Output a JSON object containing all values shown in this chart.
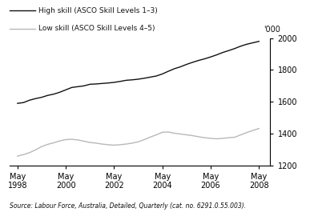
{
  "title": "'000",
  "ylim": [
    1200,
    2000
  ],
  "yticks": [
    1200,
    1400,
    1600,
    1800,
    2000
  ],
  "source_text": "Source: Labour Force, Australia, Detailed, Quarterly (cat. no. 6291.0.55.003).",
  "legend": [
    {
      "label": "High skill (ASCO Skill Levels 1–3)",
      "color": "#111111",
      "lw": 1.0
    },
    {
      "label": "Low skill (ASCO Skill Levels 4–5)",
      "color": "#b8b8b8",
      "lw": 1.0
    }
  ],
  "x_tick_years": [
    1998,
    2000,
    2002,
    2004,
    2006,
    2008
  ],
  "high_skill": {
    "x": [
      1998.33,
      1998.58,
      1998.83,
      1999.08,
      1999.33,
      1999.58,
      1999.83,
      2000.08,
      2000.33,
      2000.58,
      2000.83,
      2001.08,
      2001.33,
      2001.58,
      2001.83,
      2002.08,
      2002.33,
      2002.58,
      2002.83,
      2003.08,
      2003.33,
      2003.58,
      2003.83,
      2004.08,
      2004.33,
      2004.58,
      2004.83,
      2005.08,
      2005.33,
      2005.58,
      2005.83,
      2006.08,
      2006.33,
      2006.58,
      2006.83,
      2007.08,
      2007.33,
      2007.58,
      2007.83,
      2008.33
    ],
    "y": [
      1590,
      1595,
      1610,
      1620,
      1628,
      1640,
      1648,
      1660,
      1675,
      1690,
      1695,
      1700,
      1710,
      1712,
      1715,
      1718,
      1722,
      1728,
      1735,
      1738,
      1742,
      1748,
      1755,
      1762,
      1775,
      1792,
      1808,
      1820,
      1835,
      1848,
      1860,
      1870,
      1882,
      1895,
      1910,
      1922,
      1935,
      1950,
      1962,
      1980
    ]
  },
  "low_skill": {
    "x": [
      1998.33,
      1998.58,
      1998.83,
      1999.08,
      1999.33,
      1999.58,
      1999.83,
      2000.08,
      2000.33,
      2000.58,
      2000.83,
      2001.08,
      2001.33,
      2001.58,
      2001.83,
      2002.08,
      2002.33,
      2002.58,
      2002.83,
      2003.08,
      2003.33,
      2003.58,
      2003.83,
      2004.08,
      2004.33,
      2004.58,
      2004.83,
      2005.08,
      2005.33,
      2005.58,
      2005.83,
      2006.08,
      2006.33,
      2006.58,
      2006.83,
      2007.08,
      2007.33,
      2007.58,
      2007.83,
      2008.33
    ],
    "y": [
      1258,
      1268,
      1280,
      1298,
      1318,
      1332,
      1342,
      1354,
      1362,
      1364,
      1360,
      1352,
      1344,
      1340,
      1334,
      1330,
      1327,
      1330,
      1334,
      1340,
      1348,
      1362,
      1378,
      1392,
      1408,
      1410,
      1402,
      1397,
      1392,
      1387,
      1380,
      1374,
      1370,
      1367,
      1370,
      1374,
      1377,
      1392,
      1407,
      1432
    ]
  },
  "background_color": "#ffffff"
}
